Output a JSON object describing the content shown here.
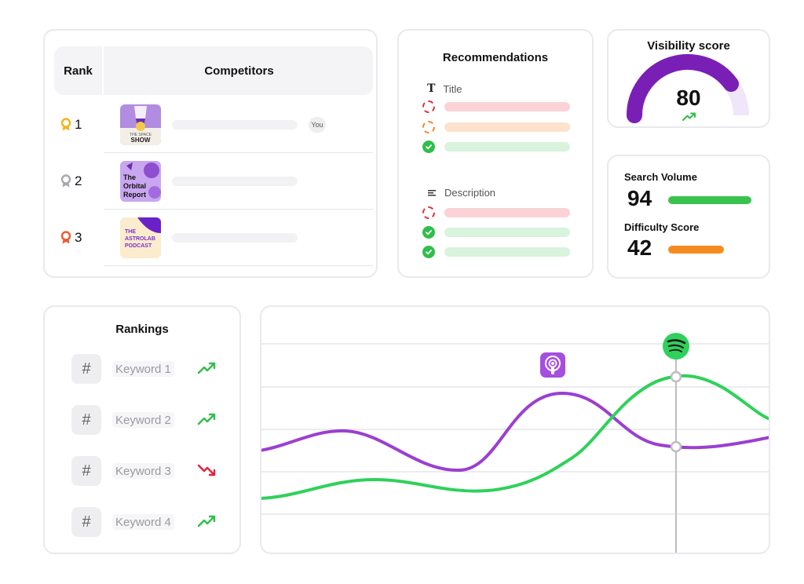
{
  "competitors": {
    "rank_header": "Rank",
    "competitors_header": "Competitors",
    "you_badge": "You",
    "rows": [
      {
        "rank": "1",
        "badge_color": "#f2b41a",
        "show_text": "THE SPACE SHOW",
        "is_you": true
      },
      {
        "rank": "2",
        "badge_color": "#a7a7ad",
        "show_text": "The Orbital Report",
        "is_you": false
      },
      {
        "rank": "3",
        "badge_color": "#ee5a2f",
        "show_text": "THE ASTROLAB PODCAST",
        "is_you": false
      }
    ]
  },
  "recommendations": {
    "title": "Recommendations",
    "title_section": "Title",
    "description_section": "Description",
    "title_items": [
      "bad",
      "warn",
      "ok"
    ],
    "description_items": [
      "bad",
      "ok",
      "ok"
    ]
  },
  "visibility": {
    "title": "Visibility score",
    "score": "80",
    "score_fraction": 0.8,
    "trend": "up"
  },
  "metrics": {
    "search_volume_label": "Search Volume",
    "search_volume_value": "94",
    "search_volume_color": "#3ac24e",
    "difficulty_label": "Difficulty Score",
    "difficulty_value": "42",
    "difficulty_color": "#f58b1f"
  },
  "rankings": {
    "title": "Rankings",
    "keywords": [
      {
        "label": "Keyword 1",
        "trend": "up"
      },
      {
        "label": "Keyword 2",
        "trend": "up"
      },
      {
        "label": "Keyword 3",
        "trend": "down"
      },
      {
        "label": "Keyword 4",
        "trend": "up"
      }
    ]
  },
  "chart": {
    "series": [
      {
        "platform": "apple-podcasts-icon",
        "color": "#9b3fd1"
      },
      {
        "platform": "spotify-icon",
        "color": "#2fd15a"
      }
    ],
    "colors": {
      "up": "#2fbf4a",
      "down": "#e6213c",
      "accent": "#7a1fb5"
    }
  }
}
